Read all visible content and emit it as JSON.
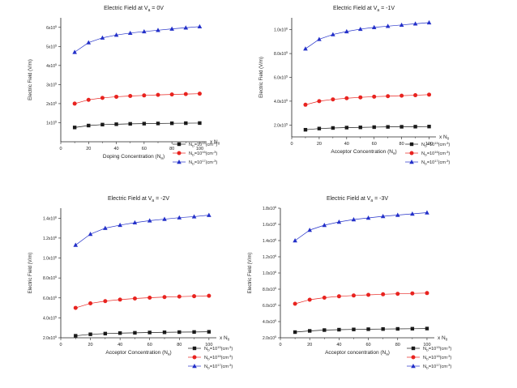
{
  "chart_data": [
    {
      "type": "line",
      "title": "Electric Field at V",
      "title_sub": "a",
      "title_tail": " = 0V",
      "xlabel": "Doping Concentration (N",
      "xlabel_sub": "a",
      "xlabel_tail": ")",
      "ylabel": "Electric Field (V/m)",
      "x_unit_label": "x N",
      "x_unit_sub": "0",
      "xlim": [
        0,
        105
      ],
      "ylim": [
        0,
        650000
      ],
      "xticks": [
        0,
        20,
        40,
        60,
        80,
        100
      ],
      "xtick_labels": [
        "0",
        "20",
        "40",
        "60",
        "80",
        "100"
      ],
      "yticks": [
        100000,
        200000,
        300000,
        400000,
        500000,
        600000
      ],
      "ytick_labels": [
        {
          "base": "1x10",
          "exp": "5"
        },
        {
          "base": "2x10",
          "exp": "5"
        },
        {
          "base": "3x10",
          "exp": "5"
        },
        {
          "base": "4x10",
          "exp": "5"
        },
        {
          "base": "5x10",
          "exp": "5"
        },
        {
          "base": "6x10",
          "exp": "5"
        }
      ],
      "x": [
        10,
        20,
        30,
        40,
        50,
        60,
        70,
        80,
        90,
        100
      ],
      "series": [
        {
          "name": "N",
          "name_sub": "D",
          "name_mid": "=10",
          "name_exp": "15",
          "name_tail": "(cm",
          "name_tail_exp": "-3",
          "name_end": ")",
          "color": "#1a1a1a",
          "marker": "square",
          "values": [
            75000,
            85000,
            90000,
            92000,
            94000,
            95000,
            96000,
            97000,
            97500,
            98000
          ]
        },
        {
          "name": "N",
          "name_sub": "D",
          "name_mid": "=10",
          "name_exp": "16",
          "name_tail": "(cm",
          "name_tail_exp": "-3",
          "name_end": ")",
          "color": "#e8231f",
          "marker": "circle",
          "values": [
            200000,
            220000,
            230000,
            236000,
            240000,
            243000,
            246000,
            248000,
            250000,
            252000
          ]
        },
        {
          "name": "N",
          "name_sub": "D",
          "name_mid": "=10",
          "name_exp": "17",
          "name_tail": "(cm",
          "name_tail_exp": "-3",
          "name_end": ")",
          "color": "#2330c9",
          "marker": "triangle",
          "values": [
            470000,
            520000,
            545000,
            560000,
            570000,
            578000,
            585000,
            592000,
            598000,
            604000
          ]
        }
      ]
    },
    {
      "type": "line",
      "title": "Electric Field at V",
      "title_sub": "a",
      "title_tail": " = -1V",
      "xlabel": "Acceptor Concentration (N",
      "xlabel_sub": "a",
      "xlabel_tail": ")",
      "ylabel": "Electric Field (V/m)",
      "x_unit_label": "x N",
      "x_unit_sub": "0",
      "xlim": [
        0,
        105
      ],
      "ylim": [
        100000,
        1100000
      ],
      "xticks": [
        0,
        20,
        40,
        60,
        80,
        100
      ],
      "xtick_labels": [
        "0",
        "20",
        "40",
        "60",
        "80",
        "100"
      ],
      "yticks": [
        200000,
        400000,
        600000,
        800000,
        1000000
      ],
      "ytick_labels": [
        {
          "base": "2.0x10",
          "exp": "5"
        },
        {
          "base": "4.0x10",
          "exp": "5"
        },
        {
          "base": "6.0x10",
          "exp": "5"
        },
        {
          "base": "8.0x10",
          "exp": "5"
        },
        {
          "base": "1.0x10",
          "exp": "6"
        }
      ],
      "x": [
        10,
        20,
        30,
        40,
        50,
        60,
        70,
        80,
        90,
        100
      ],
      "series": [
        {
          "name": "N",
          "name_sub": "D",
          "name_mid": "=10",
          "name_exp": "15",
          "name_tail": "(cm",
          "name_tail_exp": "-3",
          "name_end": ")",
          "color": "#1a1a1a",
          "marker": "square",
          "values": [
            160000,
            170000,
            175000,
            178000,
            180000,
            182000,
            184000,
            185000,
            186000,
            187000
          ]
        },
        {
          "name": "N",
          "name_sub": "D",
          "name_mid": "=10",
          "name_exp": "16",
          "name_tail": "(cm",
          "name_tail_exp": "-3",
          "name_end": ")",
          "color": "#e8231f",
          "marker": "circle",
          "values": [
            370000,
            400000,
            415000,
            425000,
            432000,
            438000,
            442000,
            446000,
            450000,
            455000
          ]
        },
        {
          "name": "N",
          "name_sub": "D",
          "name_mid": "=10",
          "name_exp": "17",
          "name_tail": "(cm",
          "name_tail_exp": "-3",
          "name_end": ")",
          "color": "#2330c9",
          "marker": "triangle",
          "values": [
            840000,
            920000,
            960000,
            985000,
            1005000,
            1020000,
            1030000,
            1040000,
            1050000,
            1060000
          ]
        }
      ]
    },
    {
      "type": "line",
      "title": "Electric Field at V",
      "title_sub": "a",
      "title_tail": " = -2V",
      "xlabel": "Acceptor Concentration (N",
      "xlabel_sub": "a",
      "xlabel_tail": ")",
      "ylabel": "Electric Field (V/m)",
      "x_unit_label": "x N",
      "x_unit_sub": "0",
      "xlim": [
        0,
        105
      ],
      "ylim": [
        200000,
        1500000
      ],
      "xticks": [
        0,
        20,
        40,
        60,
        80,
        100
      ],
      "xtick_labels": [
        "0",
        "20",
        "40",
        "60",
        "80",
        "100"
      ],
      "yticks": [
        200000,
        400000,
        600000,
        800000,
        1000000,
        1200000,
        1400000
      ],
      "ytick_labels": [
        {
          "base": "2.0x10",
          "exp": "5"
        },
        {
          "base": "4.0x10",
          "exp": "5"
        },
        {
          "base": "6.0x10",
          "exp": "5"
        },
        {
          "base": "8.0x10",
          "exp": "5"
        },
        {
          "base": "1.0x10",
          "exp": "6"
        },
        {
          "base": "1.2x10",
          "exp": "6"
        },
        {
          "base": "1.4x10",
          "exp": "6"
        }
      ],
      "x": [
        10,
        20,
        30,
        40,
        50,
        60,
        70,
        80,
        90,
        100
      ],
      "series": [
        {
          "name": "N",
          "name_sub": "D",
          "name_mid": "=10",
          "name_exp": "15",
          "name_tail": "(cm",
          "name_tail_exp": "-3",
          "name_end": ")",
          "color": "#1a1a1a",
          "marker": "square",
          "values": [
            220000,
            235000,
            242000,
            247000,
            250000,
            253000,
            255000,
            257000,
            258000,
            260000
          ]
        },
        {
          "name": "N",
          "name_sub": "D",
          "name_mid": "=10",
          "name_exp": "16",
          "name_tail": "(cm",
          "name_tail_exp": "-3",
          "name_end": ")",
          "color": "#e8231f",
          "marker": "circle",
          "values": [
            500000,
            545000,
            568000,
            583000,
            594000,
            602000,
            608000,
            613000,
            617000,
            621000
          ]
        },
        {
          "name": "N",
          "name_sub": "D",
          "name_mid": "=10",
          "name_exp": "17",
          "name_tail": "(cm",
          "name_tail_exp": "-3",
          "name_end": ")",
          "color": "#2330c9",
          "marker": "triangle",
          "values": [
            1130000,
            1240000,
            1300000,
            1330000,
            1355000,
            1375000,
            1390000,
            1405000,
            1415000,
            1430000
          ]
        }
      ]
    },
    {
      "type": "line",
      "title": "Electric Field at V",
      "title_sub": "a",
      "title_tail": " = -3V",
      "xlabel": "Acceptor concentration (N",
      "xlabel_sub": "a",
      "xlabel_tail": ")",
      "ylabel": "Electric Field (V/m)",
      "x_unit_label": "x N",
      "x_unit_sub": "0",
      "xlim": [
        0,
        105
      ],
      "ylim": [
        200000,
        1800000
      ],
      "xticks": [
        0,
        20,
        40,
        60,
        80,
        100
      ],
      "xtick_labels": [
        "0",
        "20",
        "40",
        "60",
        "80",
        "100"
      ],
      "yticks": [
        200000,
        400000,
        600000,
        800000,
        1000000,
        1200000,
        1400000,
        1600000,
        1800000
      ],
      "ytick_labels": [
        {
          "base": "2.0x10",
          "exp": "5"
        },
        {
          "base": "4.0x10",
          "exp": "5"
        },
        {
          "base": "6.0x10",
          "exp": "5"
        },
        {
          "base": "8.0x10",
          "exp": "5"
        },
        {
          "base": "1.0x10",
          "exp": "6"
        },
        {
          "base": "1.2x10",
          "exp": "6"
        },
        {
          "base": "1.4x10",
          "exp": "6"
        },
        {
          "base": "1.6x10",
          "exp": "6"
        },
        {
          "base": "1.8x10",
          "exp": "6"
        }
      ],
      "x": [
        10,
        20,
        30,
        40,
        50,
        60,
        70,
        80,
        90,
        100
      ],
      "series": [
        {
          "name": "N",
          "name_sub": "D",
          "name_mid": "=10",
          "name_exp": "15",
          "name_tail": "(cm",
          "name_tail_exp": "-3",
          "name_end": ")",
          "color": "#1a1a1a",
          "marker": "square",
          "values": [
            270000,
            285000,
            295000,
            300000,
            303000,
            306000,
            308000,
            310000,
            312000,
            314000
          ]
        },
        {
          "name": "N",
          "name_sub": "D",
          "name_mid": "=10",
          "name_exp": "16",
          "name_tail": "(cm",
          "name_tail_exp": "-3",
          "name_end": ")",
          "color": "#e8231f",
          "marker": "circle",
          "values": [
            620000,
            670000,
            695000,
            712000,
            722000,
            730000,
            737000,
            743000,
            748000,
            752000
          ]
        },
        {
          "name": "N",
          "name_sub": "D",
          "name_mid": "=10",
          "name_exp": "17",
          "name_tail": "(cm",
          "name_tail_exp": "-3",
          "name_end": ")",
          "color": "#2330c9",
          "marker": "triangle",
          "values": [
            1400000,
            1530000,
            1590000,
            1630000,
            1660000,
            1680000,
            1700000,
            1715000,
            1730000,
            1745000
          ]
        }
      ]
    }
  ]
}
